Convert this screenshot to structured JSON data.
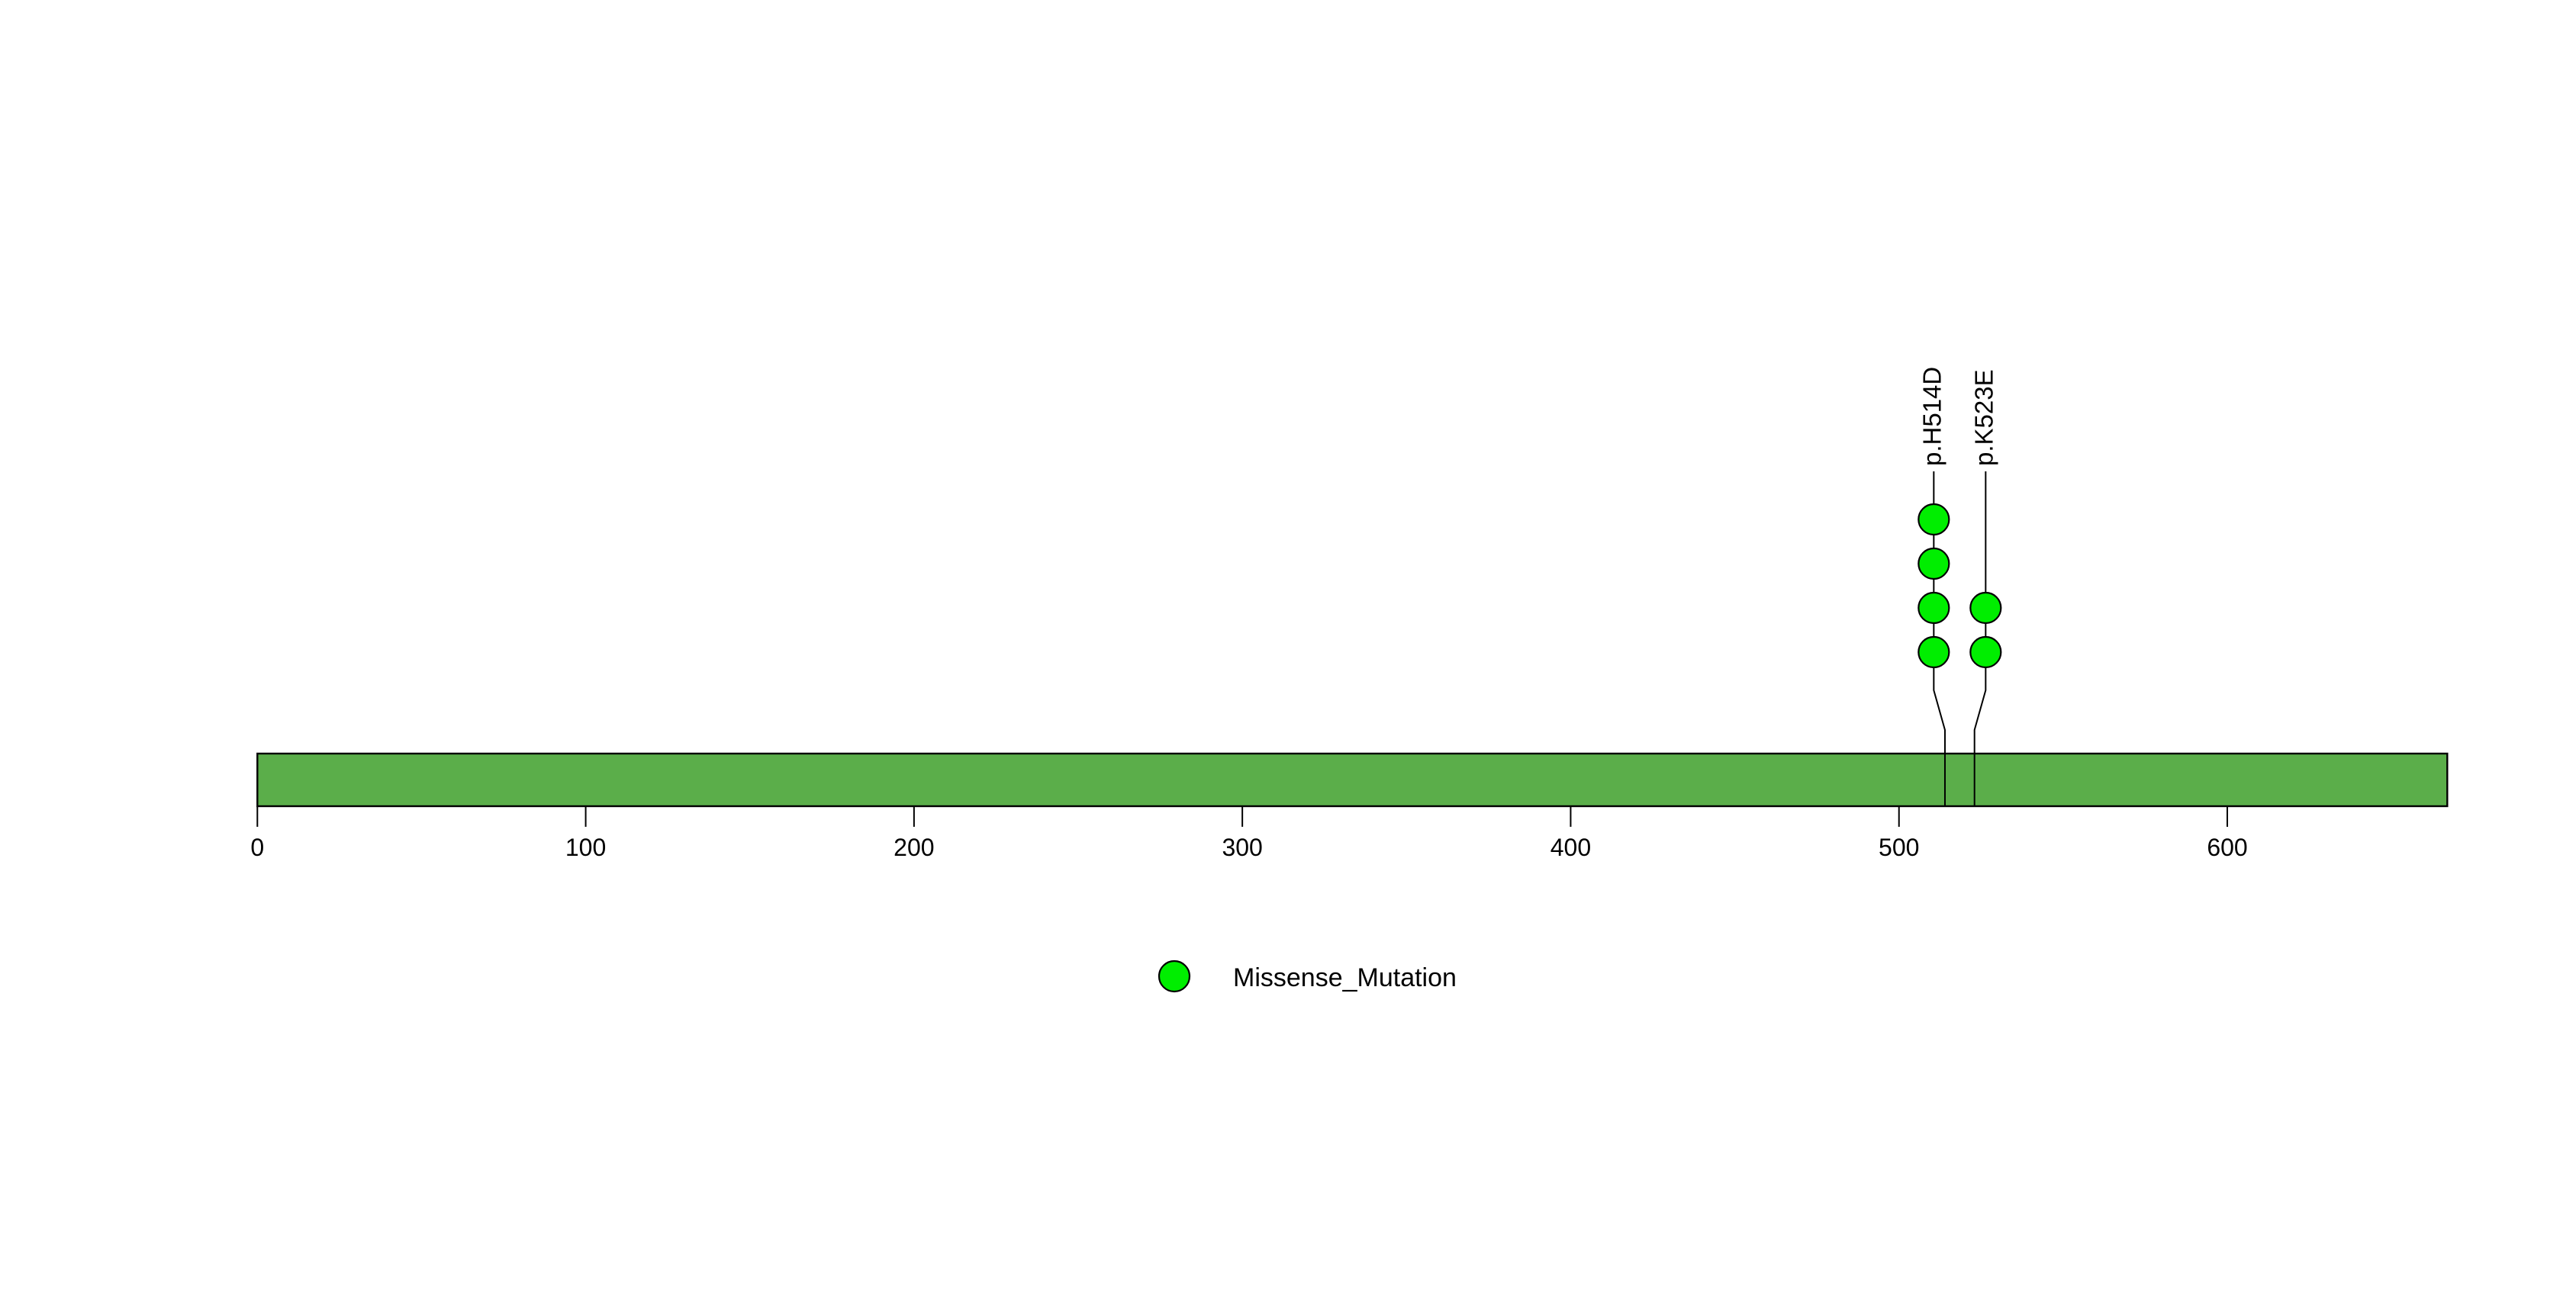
{
  "chart_data": {
    "type": "lollipop",
    "title": "",
    "xlabel": "",
    "ylabel": "",
    "grid": false,
    "legend_position": "bottom-center",
    "axis": {
      "xlim": [
        0,
        667
      ],
      "ticks": [
        0,
        100,
        200,
        300,
        400,
        500,
        600
      ],
      "tick_labels": [
        "0",
        "100",
        "200",
        "300",
        "400",
        "500",
        "600"
      ]
    },
    "protein": {
      "length": 667,
      "bar_color": "#5BAE4A",
      "bar_border_color": "#000000"
    },
    "mutations": [
      {
        "label": "p.H514D",
        "position": 514,
        "count": 4,
        "type": "Missense_Mutation"
      },
      {
        "label": "p.K523E",
        "position": 523,
        "count": 2,
        "type": "Missense_Mutation"
      }
    ],
    "mutation_types": {
      "Missense_Mutation": {
        "color": "#00EE00",
        "border": "#000000"
      }
    },
    "legend": [
      {
        "label": "Missense_Mutation",
        "color": "#00EE00"
      }
    ]
  },
  "colors": {
    "background": "#FFFFFF",
    "text": "#000000",
    "stem": "#000000",
    "protein_bar": "#5BAE4A",
    "missense_circle": "#00EE00"
  }
}
